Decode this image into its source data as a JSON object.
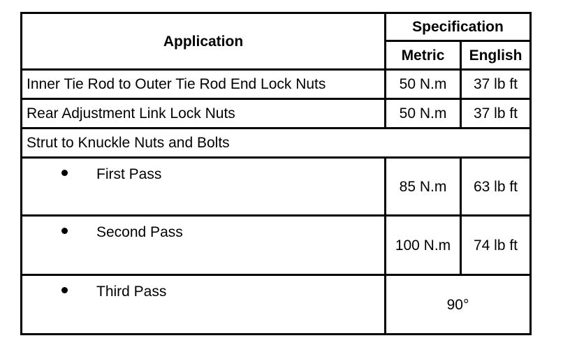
{
  "table": {
    "header": {
      "application": "Application",
      "specification": "Specification",
      "metric": "Metric",
      "english": "English"
    },
    "rows": [
      {
        "application": "Inner Tie Rod to Outer Tie Rod End Lock Nuts",
        "metric": "50 N.m",
        "english": "37 lb ft"
      },
      {
        "application": "Rear Adjustment Link Lock Nuts",
        "metric": "50 N.m",
        "english": "37 lb ft"
      },
      {
        "application": "Strut to Knuckle Nuts and Bolts"
      },
      {
        "application": "First Pass",
        "metric": "85 N.m",
        "english": "63 lb ft",
        "bullet": true
      },
      {
        "application": "Second Pass",
        "metric": "100 N.m",
        "english": "74 lb ft",
        "bullet": true
      },
      {
        "application": "Third Pass",
        "spec": "90°",
        "bullet": true
      }
    ]
  }
}
